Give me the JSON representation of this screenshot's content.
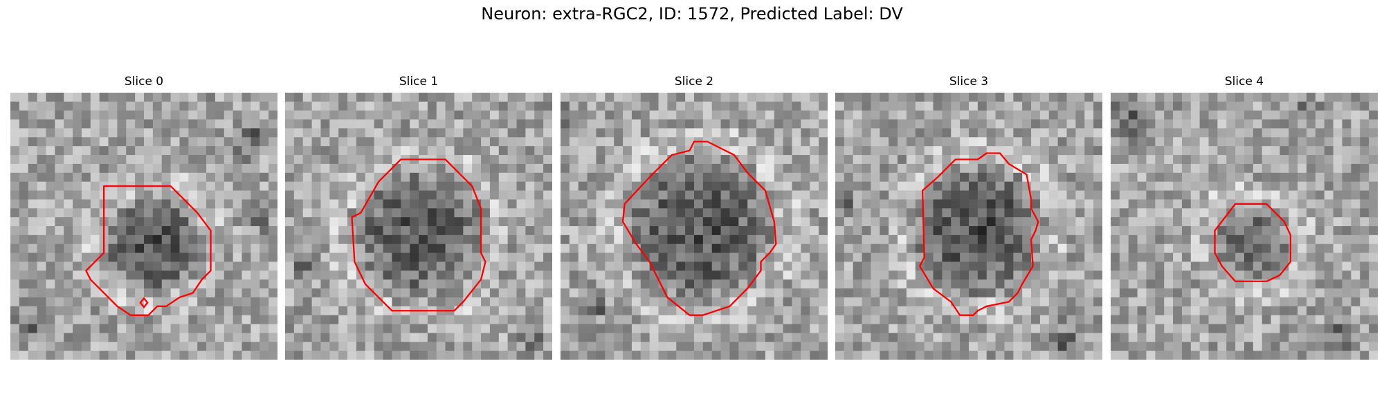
{
  "figure": {
    "title": "Neuron: extra-RGC2, ID: 1572, Predicted Label: DV"
  },
  "panels": [
    {
      "title": "Slice 0"
    },
    {
      "title": "Slice 1"
    },
    {
      "title": "Slice 2"
    },
    {
      "title": "Slice 3"
    },
    {
      "title": "Slice 4"
    }
  ],
  "colors": {
    "contour": "#ff0000",
    "background": "#ffffff",
    "text": "#000000"
  }
}
